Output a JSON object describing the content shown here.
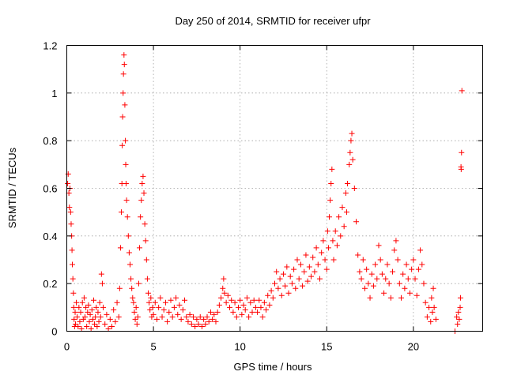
{
  "chart_data": {
    "type": "scatter",
    "title": "Day 250 of 2014, SRMTID for receiver ufpr",
    "xlabel": "GPS time / hours",
    "ylabel": "SRMTID / TECUs",
    "xlim": [
      0,
      24
    ],
    "ylim": [
      0,
      1.2
    ],
    "x_ticks": [
      0,
      5,
      10,
      15,
      20
    ],
    "y_ticks": [
      0,
      0.2,
      0.4,
      0.6,
      0.8,
      1,
      1.2
    ],
    "x_tick_labels": [
      "0",
      "5",
      "10",
      "15",
      "20"
    ],
    "y_tick_labels": [
      "0",
      "0.2",
      "0.4",
      "0.6",
      "0.8",
      "1",
      "1.2"
    ],
    "grid": true,
    "marker": "+",
    "color": "#ff0000",
    "series": [
      {
        "name": "SRMTID",
        "points": [
          [
            0.05,
            0.62
          ],
          [
            0.08,
            0.66
          ],
          [
            0.12,
            0.58
          ],
          [
            0.15,
            0.52
          ],
          [
            0.18,
            0.6
          ],
          [
            0.22,
            0.5
          ],
          [
            0.25,
            0.45
          ],
          [
            0.28,
            0.4
          ],
          [
            0.3,
            0.34
          ],
          [
            0.32,
            0.28
          ],
          [
            0.35,
            0.22
          ],
          [
            0.38,
            0.16
          ],
          [
            0.4,
            0.1
          ],
          [
            0.42,
            0.05
          ],
          [
            0.45,
            0.02
          ],
          [
            0.48,
            0.08
          ],
          [
            0.5,
            0.03
          ],
          [
            0.55,
            0.12
          ],
          [
            0.6,
            0.06
          ],
          [
            0.65,
            0.02
          ],
          [
            0.7,
            0.1
          ],
          [
            0.75,
            0.04
          ],
          [
            0.8,
            0.08
          ],
          [
            0.85,
            0.01
          ],
          [
            0.9,
            0.12
          ],
          [
            0.95,
            0.05
          ],
          [
            1.0,
            0.14
          ],
          [
            1.05,
            0.06
          ],
          [
            1.1,
            0.1
          ],
          [
            1.15,
            0.02
          ],
          [
            1.2,
            0.08
          ],
          [
            1.25,
            0.11
          ],
          [
            1.3,
            0.04
          ],
          [
            1.35,
            0.07
          ],
          [
            1.4,
            0.01
          ],
          [
            1.45,
            0.09
          ],
          [
            1.5,
            0.05
          ],
          [
            1.55,
            0.13
          ],
          [
            1.6,
            0.03
          ],
          [
            1.65,
            0.06
          ],
          [
            1.7,
            0.1
          ],
          [
            1.75,
            0.02
          ],
          [
            1.8,
            0.08
          ],
          [
            1.85,
            0.04
          ],
          [
            1.9,
            0.12
          ],
          [
            1.95,
            0.06
          ],
          [
            2.0,
            0.24
          ],
          [
            2.05,
            0.2
          ],
          [
            2.1,
            0.1
          ],
          [
            2.2,
            0.03
          ],
          [
            2.3,
            0.07
          ],
          [
            2.4,
            0.01
          ],
          [
            2.5,
            0.05
          ],
          [
            2.6,
            0.02
          ],
          [
            2.7,
            0.09
          ],
          [
            2.8,
            0.04
          ],
          [
            2.9,
            0.12
          ],
          [
            3.0,
            0.06
          ],
          [
            3.05,
            0.18
          ],
          [
            3.1,
            0.35
          ],
          [
            3.15,
            0.5
          ],
          [
            3.18,
            0.62
          ],
          [
            3.2,
            0.78
          ],
          [
            3.22,
            0.9
          ],
          [
            3.25,
            1.0
          ],
          [
            3.27,
            1.08
          ],
          [
            3.3,
            1.16
          ],
          [
            3.32,
            1.12
          ],
          [
            3.35,
            0.95
          ],
          [
            3.38,
            0.8
          ],
          [
            3.4,
            0.7
          ],
          [
            3.42,
            0.62
          ],
          [
            3.45,
            0.55
          ],
          [
            3.5,
            0.48
          ],
          [
            3.55,
            0.4
          ],
          [
            3.6,
            0.33
          ],
          [
            3.65,
            0.28
          ],
          [
            3.7,
            0.22
          ],
          [
            3.75,
            0.18
          ],
          [
            3.8,
            0.14
          ],
          [
            3.85,
            0.12
          ],
          [
            3.9,
            0.08
          ],
          [
            3.95,
            0.05
          ],
          [
            4.0,
            0.1
          ],
          [
            4.05,
            0.03
          ],
          [
            4.1,
            0.06
          ],
          [
            4.15,
            0.2
          ],
          [
            4.2,
            0.35
          ],
          [
            4.25,
            0.48
          ],
          [
            4.3,
            0.55
          ],
          [
            4.35,
            0.62
          ],
          [
            4.4,
            0.65
          ],
          [
            4.45,
            0.58
          ],
          [
            4.5,
            0.45
          ],
          [
            4.55,
            0.38
          ],
          [
            4.6,
            0.3
          ],
          [
            4.65,
            0.22
          ],
          [
            4.7,
            0.16
          ],
          [
            4.75,
            0.12
          ],
          [
            4.8,
            0.09
          ],
          [
            4.85,
            0.14
          ],
          [
            4.9,
            0.06
          ],
          [
            4.95,
            0.1
          ],
          [
            5.0,
            0.07
          ],
          [
            5.1,
            0.12
          ],
          [
            5.2,
            0.05
          ],
          [
            5.3,
            0.1
          ],
          [
            5.4,
            0.14
          ],
          [
            5.5,
            0.06
          ],
          [
            5.6,
            0.09
          ],
          [
            5.7,
            0.12
          ],
          [
            5.8,
            0.04
          ],
          [
            5.9,
            0.08
          ],
          [
            6.0,
            0.13
          ],
          [
            6.1,
            0.06
          ],
          [
            6.2,
            0.1
          ],
          [
            6.3,
            0.14
          ],
          [
            6.4,
            0.07
          ],
          [
            6.5,
            0.11
          ],
          [
            6.6,
            0.05
          ],
          [
            6.7,
            0.09
          ],
          [
            6.8,
            0.13
          ],
          [
            6.9,
            0.06
          ],
          [
            7.0,
            0.04
          ],
          [
            7.1,
            0.07
          ],
          [
            7.2,
            0.03
          ],
          [
            7.3,
            0.06
          ],
          [
            7.4,
            0.02
          ],
          [
            7.5,
            0.05
          ],
          [
            7.6,
            0.03
          ],
          [
            7.7,
            0.06
          ],
          [
            7.8,
            0.02
          ],
          [
            7.9,
            0.05
          ],
          [
            8.0,
            0.03
          ],
          [
            8.1,
            0.06
          ],
          [
            8.2,
            0.04
          ],
          [
            8.3,
            0.08
          ],
          [
            8.4,
            0.05
          ],
          [
            8.5,
            0.07
          ],
          [
            8.6,
            0.04
          ],
          [
            8.7,
            0.08
          ],
          [
            8.8,
            0.11
          ],
          [
            8.9,
            0.14
          ],
          [
            9.0,
            0.18
          ],
          [
            9.05,
            0.22
          ],
          [
            9.1,
            0.16
          ],
          [
            9.2,
            0.12
          ],
          [
            9.3,
            0.15
          ],
          [
            9.4,
            0.1
          ],
          [
            9.5,
            0.13
          ],
          [
            9.6,
            0.08
          ],
          [
            9.7,
            0.12
          ],
          [
            9.8,
            0.06
          ],
          [
            9.9,
            0.1
          ],
          [
            10.0,
            0.13
          ],
          [
            10.1,
            0.07
          ],
          [
            10.2,
            0.11
          ],
          [
            10.3,
            0.09
          ],
          [
            10.4,
            0.14
          ],
          [
            10.5,
            0.06
          ],
          [
            10.6,
            0.12
          ],
          [
            10.7,
            0.08
          ],
          [
            10.8,
            0.13
          ],
          [
            10.9,
            0.1
          ],
          [
            11.0,
            0.08
          ],
          [
            11.1,
            0.13
          ],
          [
            11.2,
            0.1
          ],
          [
            11.3,
            0.06
          ],
          [
            11.4,
            0.12
          ],
          [
            11.5,
            0.09
          ],
          [
            11.6,
            0.15
          ],
          [
            11.7,
            0.11
          ],
          [
            11.8,
            0.17
          ],
          [
            11.9,
            0.14
          ],
          [
            12.0,
            0.2
          ],
          [
            12.1,
            0.25
          ],
          [
            12.2,
            0.18
          ],
          [
            12.3,
            0.22
          ],
          [
            12.4,
            0.15
          ],
          [
            12.5,
            0.24
          ],
          [
            12.6,
            0.19
          ],
          [
            12.7,
            0.27
          ],
          [
            12.8,
            0.16
          ],
          [
            12.9,
            0.23
          ],
          [
            13.0,
            0.2
          ],
          [
            13.1,
            0.26
          ],
          [
            13.2,
            0.18
          ],
          [
            13.3,
            0.3
          ],
          [
            13.4,
            0.22
          ],
          [
            13.5,
            0.28
          ],
          [
            13.6,
            0.19
          ],
          [
            13.7,
            0.25
          ],
          [
            13.8,
            0.32
          ],
          [
            13.9,
            0.21
          ],
          [
            14.0,
            0.27
          ],
          [
            14.1,
            0.23
          ],
          [
            14.2,
            0.31
          ],
          [
            14.3,
            0.25
          ],
          [
            14.4,
            0.35
          ],
          [
            14.5,
            0.28
          ],
          [
            14.6,
            0.22
          ],
          [
            14.7,
            0.33
          ],
          [
            14.8,
            0.38
          ],
          [
            14.9,
            0.3
          ],
          [
            15.0,
            0.26
          ],
          [
            15.05,
            0.42
          ],
          [
            15.1,
            0.35
          ],
          [
            15.15,
            0.48
          ],
          [
            15.2,
            0.55
          ],
          [
            15.25,
            0.62
          ],
          [
            15.3,
            0.68
          ],
          [
            15.35,
            0.38
          ],
          [
            15.4,
            0.3
          ],
          [
            15.5,
            0.42
          ],
          [
            15.6,
            0.36
          ],
          [
            15.7,
            0.48
          ],
          [
            15.8,
            0.4
          ],
          [
            15.9,
            0.52
          ],
          [
            16.0,
            0.44
          ],
          [
            16.1,
            0.58
          ],
          [
            16.15,
            0.5
          ],
          [
            16.2,
            0.62
          ],
          [
            16.3,
            0.7
          ],
          [
            16.35,
            0.75
          ],
          [
            16.4,
            0.8
          ],
          [
            16.45,
            0.83
          ],
          [
            16.5,
            0.72
          ],
          [
            16.6,
            0.6
          ],
          [
            16.7,
            0.46
          ],
          [
            16.8,
            0.32
          ],
          [
            16.9,
            0.25
          ],
          [
            17.0,
            0.22
          ],
          [
            17.1,
            0.3
          ],
          [
            17.2,
            0.18
          ],
          [
            17.3,
            0.26
          ],
          [
            17.4,
            0.2
          ],
          [
            17.5,
            0.14
          ],
          [
            17.6,
            0.24
          ],
          [
            17.7,
            0.19
          ],
          [
            17.8,
            0.28
          ],
          [
            17.9,
            0.22
          ],
          [
            18.0,
            0.36
          ],
          [
            18.1,
            0.3
          ],
          [
            18.2,
            0.24
          ],
          [
            18.3,
            0.16
          ],
          [
            18.4,
            0.22
          ],
          [
            18.5,
            0.28
          ],
          [
            18.6,
            0.2
          ],
          [
            18.7,
            0.14
          ],
          [
            18.8,
            0.25
          ],
          [
            18.9,
            0.34
          ],
          [
            19.0,
            0.38
          ],
          [
            19.1,
            0.3
          ],
          [
            19.2,
            0.2
          ],
          [
            19.3,
            0.14
          ],
          [
            19.4,
            0.24
          ],
          [
            19.5,
            0.18
          ],
          [
            19.6,
            0.28
          ],
          [
            19.7,
            0.22
          ],
          [
            19.8,
            0.16
          ],
          [
            19.9,
            0.26
          ],
          [
            20.0,
            0.3
          ],
          [
            20.1,
            0.22
          ],
          [
            20.2,
            0.15
          ],
          [
            20.3,
            0.26
          ],
          [
            20.4,
            0.34
          ],
          [
            20.5,
            0.28
          ],
          [
            20.6,
            0.2
          ],
          [
            20.7,
            0.12
          ],
          [
            20.8,
            0.06
          ],
          [
            20.9,
            0.1
          ],
          [
            21.0,
            0.04
          ],
          [
            21.05,
            0.14
          ],
          [
            21.1,
            0.08
          ],
          [
            21.15,
            0.18
          ],
          [
            21.2,
            0.1
          ],
          [
            21.3,
            0.05
          ],
          [
            22.4,
            0.0
          ],
          [
            22.5,
            0.06
          ],
          [
            22.55,
            0.03
          ],
          [
            22.6,
            0.08
          ],
          [
            22.65,
            0.05
          ],
          [
            22.7,
            0.1
          ],
          [
            22.72,
            0.14
          ],
          [
            22.75,
            0.69
          ],
          [
            22.76,
            0.68
          ],
          [
            22.78,
            0.75
          ],
          [
            22.8,
            1.01
          ]
        ]
      }
    ]
  }
}
